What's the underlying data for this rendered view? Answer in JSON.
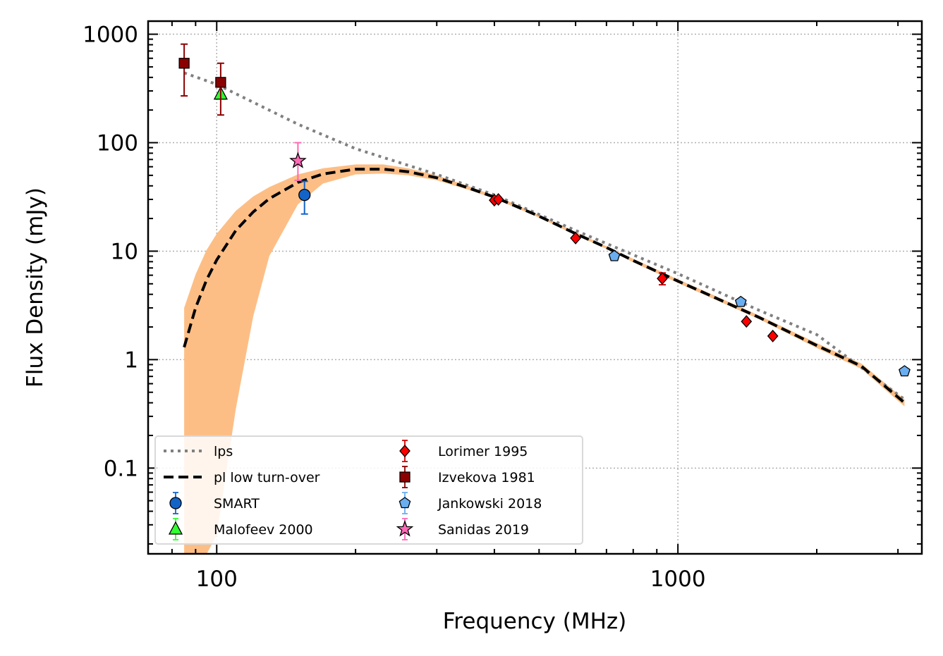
{
  "chart_data": {
    "type": "scatter",
    "xlabel": "Frequency (MHz)",
    "ylabel": "Flux Density (mJy)",
    "x_scale": "log",
    "y_scale": "log",
    "xlim": [
      71,
      3380
    ],
    "ylim": [
      0.0162,
      1320
    ],
    "grid": true,
    "legend_placement": "lower-left",
    "x_ticks": [
      {
        "value": 100,
        "label": "100"
      },
      {
        "value": 1000,
        "label": "1000"
      }
    ],
    "y_ticks": [
      {
        "value": 0.1,
        "label": "0.1"
      },
      {
        "value": 1,
        "label": "1"
      },
      {
        "value": 10,
        "label": "10"
      },
      {
        "value": 100,
        "label": "100"
      },
      {
        "value": 1000,
        "label": "1000"
      }
    ],
    "lines": [
      {
        "name": "lps",
        "style": "dotted",
        "color": "#808080",
        "x": [
          85,
          100,
          150,
          200,
          300,
          400,
          600,
          1000,
          1500,
          2000,
          3100
        ],
        "y": [
          440,
          345,
          148,
          88,
          51,
          33,
          15.5,
          6.2,
          2.85,
          1.7,
          0.43
        ]
      },
      {
        "name": "pl low turn-over",
        "style": "dashed",
        "color": "#000000",
        "x": [
          85,
          90,
          95,
          100,
          110,
          120,
          130,
          150,
          170,
          200,
          230,
          260,
          300,
          350,
          400,
          450,
          500,
          600,
          700,
          800,
          1000,
          1200,
          1500,
          2000,
          2500,
          3100
        ],
        "y": [
          1.3,
          3.0,
          5.4,
          8.3,
          15.5,
          23,
          30.5,
          43,
          51.5,
          57,
          57,
          54,
          47.5,
          38.5,
          31.5,
          25.5,
          21,
          14.5,
          10.8,
          8.2,
          5.3,
          3.75,
          2.45,
          1.35,
          0.87,
          0.4
        ]
      }
    ],
    "band": {
      "color": "#fdbe85",
      "x": [
        85,
        90,
        95,
        100,
        110,
        120,
        130,
        150,
        170,
        200,
        230,
        260,
        300,
        350,
        400,
        450,
        500,
        600,
        700,
        800,
        1000,
        1200,
        1500,
        2000,
        2500,
        3100
      ],
      "upper": [
        3.0,
        6.1,
        10.2,
        14.5,
        23.5,
        32,
        39,
        51,
        58,
        63,
        63,
        58,
        50,
        40,
        32.5,
        26.5,
        21.5,
        15,
        11.1,
        8.5,
        5.5,
        3.9,
        2.55,
        1.42,
        0.92,
        0.43
      ],
      "lower": [
        0.01,
        0.012,
        0.016,
        0.024,
        0.35,
        2.5,
        9,
        27,
        42,
        51,
        52,
        50,
        45,
        37,
        30.5,
        24.7,
        20.4,
        14.1,
        10.5,
        7.9,
        5.1,
        3.6,
        2.36,
        1.28,
        0.82,
        0.37
      ]
    },
    "series": [
      {
        "name": "SMART",
        "marker": "circle",
        "color": "#1464c8",
        "errcolor": "#1464c8",
        "x": [
          155
        ],
        "y": [
          33
        ],
        "yerr_low": [
          22
        ],
        "yerr_high": [
          44
        ]
      },
      {
        "name": "Malofeev 2000",
        "marker": "triangle",
        "color": "#32ff32",
        "errcolor": "#32ff32",
        "x": [
          102
        ],
        "y": [
          280
        ],
        "yerr_low": [
          280
        ],
        "yerr_high": [
          280
        ]
      },
      {
        "name": "Lorimer 1995",
        "marker": "diamond",
        "color": "#ff0000",
        "errcolor": "#d40000",
        "x": [
          400,
          408,
          600,
          925,
          1408,
          1606
        ],
        "y": [
          29.5,
          30,
          13.2,
          5.6,
          2.25,
          1.65
        ],
        "yerr_low": [
          29.5,
          30,
          13.2,
          4.9,
          2.25,
          1.65
        ],
        "yerr_high": [
          29.5,
          30,
          13.2,
          6.3,
          2.25,
          1.65
        ]
      },
      {
        "name": "Izvekova 1981",
        "marker": "square",
        "color": "#8b0000",
        "errcolor": "#8b0000",
        "x": [
          85,
          102
        ],
        "y": [
          540,
          360
        ],
        "yerr_low": [
          270,
          180
        ],
        "yerr_high": [
          810,
          540
        ]
      },
      {
        "name": "Jankowski 2018",
        "marker": "pentagon",
        "color": "#6aaef0",
        "errcolor": "#6aaef0",
        "x": [
          728,
          1369,
          3100
        ],
        "y": [
          9.0,
          3.4,
          0.78
        ],
        "yerr_low": [
          9.0,
          3.4,
          0.78
        ],
        "yerr_high": [
          9.0,
          3.4,
          0.78
        ]
      },
      {
        "name": "Sanidas 2019",
        "marker": "star",
        "color": "#ff69b4",
        "errcolor": "#ff69b4",
        "x": [
          150
        ],
        "y": [
          68
        ],
        "yerr_low": [
          45
        ],
        "yerr_high": [
          100
        ]
      }
    ],
    "legend": [
      {
        "label": "lps",
        "kind": "line",
        "ref": "lps"
      },
      {
        "label": "Lorimer 1995",
        "kind": "marker",
        "ref": "Lorimer 1995"
      },
      {
        "label": "pl low turn-over",
        "kind": "line",
        "ref": "pl low turn-over"
      },
      {
        "label": "Izvekova 1981",
        "kind": "marker",
        "ref": "Izvekova 1981"
      },
      {
        "label": "SMART",
        "kind": "marker",
        "ref": "SMART"
      },
      {
        "label": "Jankowski 2018",
        "kind": "marker",
        "ref": "Jankowski 2018"
      },
      {
        "label": "Malofeev 2000",
        "kind": "marker",
        "ref": "Malofeev 2000"
      },
      {
        "label": "Sanidas 2019",
        "kind": "marker",
        "ref": "Sanidas 2019"
      }
    ]
  }
}
